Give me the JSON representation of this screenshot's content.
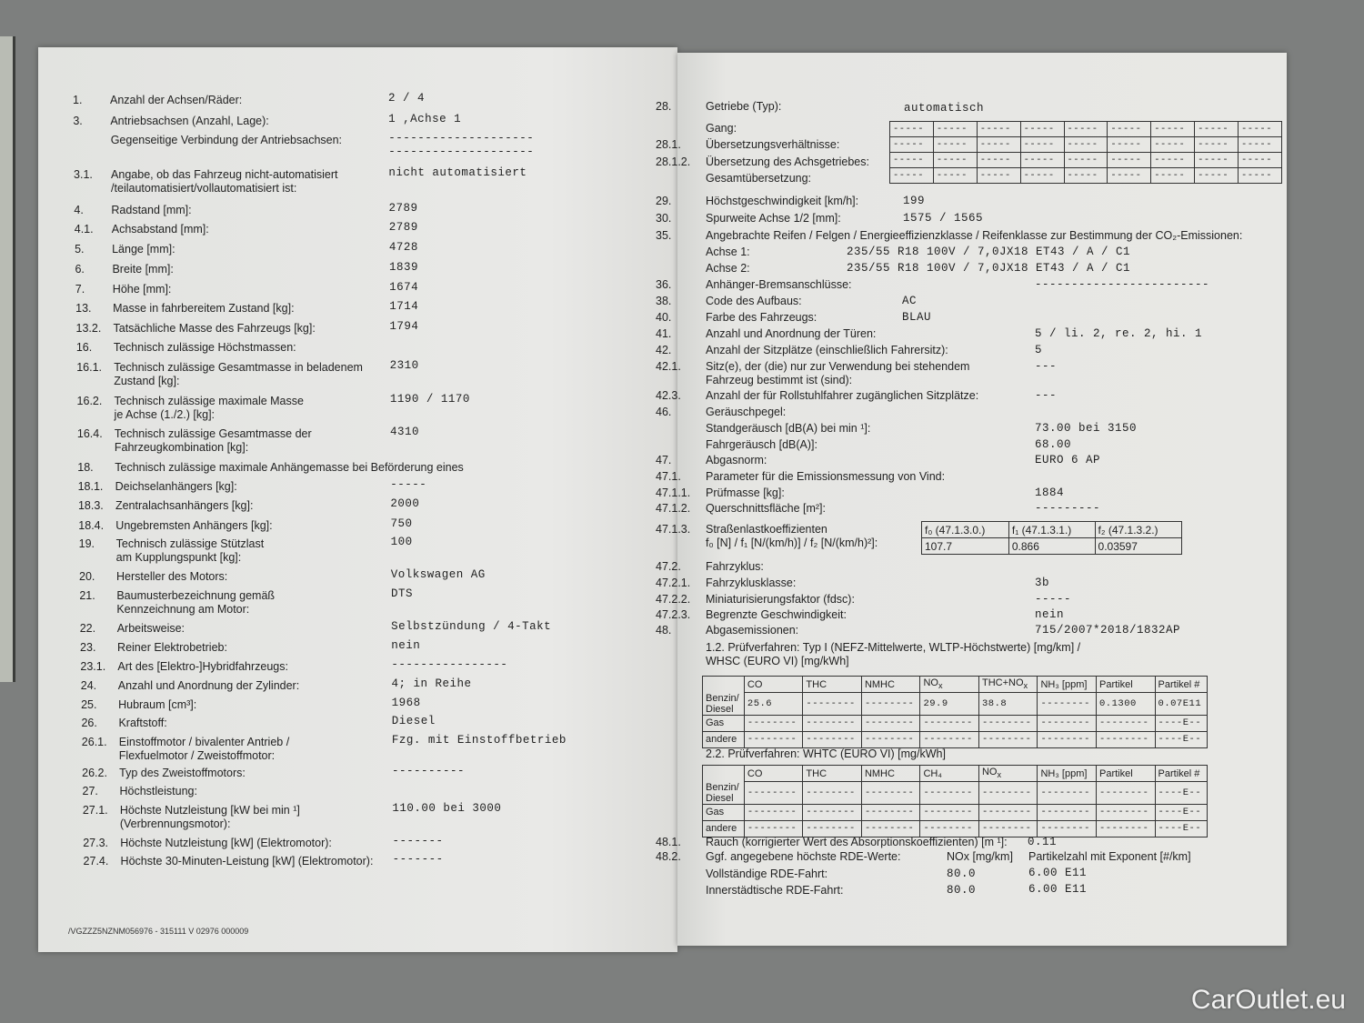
{
  "left_page": {
    "items": [
      {
        "num": "1.",
        "label": "Anzahl der Achsen/Räder:",
        "value": "2  / 4"
      },
      {
        "num": "3.",
        "label": "Antriebsachsen (Anzahl, Lage):",
        "value": "1 ,Achse 1"
      },
      {
        "num": "",
        "label": "Gegenseitige Verbindung der Antriebsachsen:",
        "value": "--------------------\n--------------------"
      },
      {
        "num": "3.1.",
        "label": "Angabe, ob das Fahrzeug nicht-automatisiert\n/teilautomatisiert/vollautomatisiert ist:",
        "value": "nicht automatisiert"
      },
      {
        "num": "4.",
        "label": "Radstand [mm]:",
        "value": "2789"
      },
      {
        "num": "4.1.",
        "label": "Achsabstand [mm]:",
        "value": "2789"
      },
      {
        "num": "5.",
        "label": "Länge [mm]:",
        "value": "4728"
      },
      {
        "num": "6.",
        "label": "Breite [mm]:",
        "value": "1839"
      },
      {
        "num": "7.",
        "label": "Höhe [mm]:",
        "value": "1674"
      },
      {
        "num": "13.",
        "label": "Masse in fahrbereitem Zustand [kg]:",
        "value": "1714"
      },
      {
        "num": "13.2.",
        "label": "Tatsächliche Masse des Fahrzeugs [kg]:",
        "value": "1794"
      },
      {
        "num": "16.",
        "label": "Technisch zulässige Höchstmassen:",
        "value": ""
      },
      {
        "num": "16.1.",
        "label": "Technisch zulässige Gesamtmasse in beladenem\nZustand [kg]:",
        "value": "2310"
      },
      {
        "num": "16.2.",
        "label": "Technisch zulässige maximale Masse\nje Achse (1./2.) [kg]:",
        "value": "1190  / 1170"
      },
      {
        "num": "16.4.",
        "label": "Technisch zulässige Gesamtmasse der\nFahrzeugkombination [kg]:",
        "value": "4310"
      },
      {
        "num": "18.",
        "label": "Technisch zulässige maximale Anhängemasse bei Beförderung eines",
        "value": ""
      },
      {
        "num": "18.1.",
        "label": "Deichselanhängers [kg]:",
        "value": "-----"
      },
      {
        "num": "18.3.",
        "label": "Zentralachsanhängers [kg]:",
        "value": "2000"
      },
      {
        "num": "18.4.",
        "label": "Ungebremsten Anhängers [kg]:",
        "value": "750"
      },
      {
        "num": "19.",
        "label": "Technisch zulässige Stützlast\nam Kupplungspunkt [kg]:",
        "value": "100"
      },
      {
        "num": "20.",
        "label": "Hersteller des Motors:",
        "value": "Volkswagen AG"
      },
      {
        "num": "21.",
        "label": "Baumusterbezeichnung gemäß\nKennzeichnung am Motor:",
        "value": "DTS"
      },
      {
        "num": "22.",
        "label": "Arbeitsweise:",
        "value": "Selbstzündung / 4-Takt"
      },
      {
        "num": "23.",
        "label": "Reiner Elektrobetrieb:",
        "value": "nein"
      },
      {
        "num": "23.1.",
        "label": "Art des [Elektro-]Hybridfahrzeugs:",
        "value": "----------------"
      },
      {
        "num": "24.",
        "label": "Anzahl und Anordnung der Zylinder:",
        "value": "4; in Reihe"
      },
      {
        "num": "25.",
        "label": "Hubraum [cm³]:",
        "value": "1968"
      },
      {
        "num": "26.",
        "label": "Kraftstoff:",
        "value": "Diesel"
      },
      {
        "num": "26.1.",
        "label": "Einstoffmotor / bivalenter Antrieb /\nFlexfuelmotor / Zweistoffmotor:",
        "value": "Fzg. mit Einstoffbetrieb"
      },
      {
        "num": "26.2.",
        "label": "Typ des Zweistoffmotors:",
        "value": "----------"
      },
      {
        "num": "27.",
        "label": "Höchstleistung:",
        "value": ""
      },
      {
        "num": "27.1.",
        "label": "Höchste Nutzleistung [kW bei min ¹]\n(Verbrennungsmotor):",
        "value": "110.00  bei 3000"
      },
      {
        "num": "27.3.",
        "label": "Höchste Nutzleistung [kW] (Elektromotor):",
        "value": "-------"
      },
      {
        "num": "27.4.",
        "label": "Höchste 30-Minuten-Leistung [kW] (Elektromotor):",
        "value": "-------"
      }
    ],
    "footer": "/VGZZZ5NZNM056976 - 315111 V 02976    000009"
  },
  "right_page": {
    "items": [
      {
        "num": "28.",
        "label": "Getriebe (Typ):",
        "value": "automatisch"
      },
      {
        "num": "",
        "label": "Gang:",
        "value": ""
      },
      {
        "num": "28.1.",
        "label": "Übersetzungsverhältnisse:",
        "value": ""
      },
      {
        "num": "28.1.2.",
        "label": "Übersetzung des Achsgetriebes:",
        "value": ""
      },
      {
        "num": "",
        "label": "Gesamtübersetzung:",
        "value": ""
      },
      {
        "num": "29.",
        "label": "Höchstgeschwindigkeit [km/h]:",
        "value": "199"
      },
      {
        "num": "30.",
        "label": "Spurweite Achse 1/2 [mm]:",
        "value": "1575  / 1565"
      },
      {
        "num": "35.",
        "label": "Angebrachte Reifen / Felgen / Energieeffizienzklasse / Reifenklasse zur Bestimmung der CO₂-Emissionen:",
        "value": ""
      },
      {
        "num": "",
        "label": "Achse 1:",
        "value": "235/55 R18 100V        / 7,0JX18 ET43        / A   / C1"
      },
      {
        "num": "",
        "label": "Achse 2:",
        "value": "235/55 R18 100V        / 7,0JX18 ET43        / A   / C1"
      },
      {
        "num": "36.",
        "label": "Anhänger-Bremsanschlüsse:",
        "value": "------------------------"
      },
      {
        "num": "38.",
        "label": "Code des Aufbaus:",
        "value": "AC"
      },
      {
        "num": "40.",
        "label": "Farbe des Fahrzeugs:",
        "value": "BLAU"
      },
      {
        "num": "41.",
        "label": "Anzahl und Anordnung der Türen:",
        "value": "5  / li. 2, re. 2, hi. 1"
      },
      {
        "num": "42.",
        "label": "Anzahl der Sitzplätze (einschließlich Fahrersitz):",
        "value": "5"
      },
      {
        "num": "42.1.",
        "label": "Sitz(e), der (die) nur zur Verwendung bei stehendem\nFahrzeug bestimmt ist (sind):",
        "value": "---"
      },
      {
        "num": "42.3.",
        "label": "Anzahl der für Rollstuhlfahrer zugänglichen Sitzplätze:",
        "value": "---"
      },
      {
        "num": "46.",
        "label": "Geräuschpegel:",
        "value": ""
      },
      {
        "num": "",
        "label": "Standgeräusch [dB(A) bei min ¹]:",
        "value": "73.00  bei 3150"
      },
      {
        "num": "",
        "label": "Fahrgeräusch [dB(A)]:",
        "value": "68.00"
      },
      {
        "num": "47.",
        "label": "Abgasnorm:",
        "value": "EURO 6 AP"
      },
      {
        "num": "47.1.",
        "label": "Parameter für die Emissionsmessung von Vind:",
        "value": ""
      },
      {
        "num": "47.1.1.",
        "label": "Prüfmasse [kg]:",
        "value": "1884"
      },
      {
        "num": "47.1.2.",
        "label": "Querschnittsfläche [m²]:",
        "value": "---------"
      },
      {
        "num": "47.1.3.",
        "label": "Straßenlastkoeffizienten\nf₀ [N] / f₁ [N/(km/h)] / f₂ [N/(km/h)²]:",
        "value": ""
      },
      {
        "num": "47.2.",
        "label": "Fahrzyklus:",
        "value": ""
      },
      {
        "num": "47.2.1.",
        "label": "Fahrzyklusklasse:",
        "value": "3b"
      },
      {
        "num": "47.2.2.",
        "label": "Miniaturisierungsfaktor (fdsc):",
        "value": "-----"
      },
      {
        "num": "47.2.3.",
        "label": "Begrenzte Geschwindigkeit:",
        "value": "nein"
      },
      {
        "num": "48.",
        "label": "Abgasemissionen:",
        "value": "715/2007*2018/1832AP"
      },
      {
        "num": "",
        "label": "1.2. Prüfverfahren: Typ I (NEFZ-Mittelwerte, WLTP-Höchstwerte) [mg/km] /\n                                WHSC (EURO VI) [mg/kWh]",
        "value": ""
      },
      {
        "num": "",
        "label": "2.2. Prüfverfahren: WHTC (EURO VI) [mg/kWh]",
        "value": ""
      },
      {
        "num": "48.1.",
        "label": "Rauch (korrigierter Wert des Absorptionskoeffizienten) [m ¹]:",
        "value": "0.11"
      },
      {
        "num": "48.2.",
        "label": "Ggf. angegebene höchste RDE-Werte:",
        "value": ""
      },
      {
        "num": "",
        "label": "Vollständige RDE-Fahrt:",
        "value": ""
      },
      {
        "num": "",
        "label": "Innerstädtische RDE-Fahrt:",
        "value": ""
      }
    ],
    "gear_cell": "-----",
    "road_load": {
      "headers": [
        "f₀ (47.1.3.0.)",
        "f₁ (47.1.3.1.)",
        "f₂ (47.1.3.2.)"
      ],
      "values": [
        "107.7",
        "0.866",
        "0.03597"
      ]
    },
    "emissions_typ1": {
      "headers": [
        "",
        "CO",
        "THC",
        "NMHC",
        "NOx",
        "THC+NOx",
        "NH₃ [ppm]",
        "Partikel",
        "Partikel #"
      ],
      "rows": [
        [
          "Benzin/\nDiesel",
          "25.6",
          "--------",
          "--------",
          "29.9",
          "38.8",
          "--------",
          "0.1300",
          "0.07E11"
        ],
        [
          "Gas",
          "--------",
          "--------",
          "--------",
          "--------",
          "--------",
          "--------",
          "--------",
          "----E--"
        ],
        [
          "andere",
          "--------",
          "--------",
          "--------",
          "--------",
          "--------",
          "--------",
          "--------",
          "----E--"
        ]
      ]
    },
    "emissions_whtc": {
      "headers": [
        "",
        "CO",
        "THC",
        "NMHC",
        "CH₄",
        "NOx",
        "NH₃ [ppm]",
        "Partikel",
        "Partikel #"
      ],
      "rows": [
        [
          "Benzin/\nDiesel",
          "--------",
          "--------",
          "--------",
          "--------",
          "--------",
          "--------",
          "--------",
          "----E--"
        ],
        [
          "Gas",
          "--------",
          "--------",
          "--------",
          "--------",
          "--------",
          "--------",
          "--------",
          "----E--"
        ],
        [
          "andere",
          "--------",
          "--------",
          "--------",
          "--------",
          "--------",
          "--------",
          "--------",
          "----E--"
        ]
      ]
    },
    "rde": {
      "headers": [
        "NOx [mg/km]",
        "Partikelzahl mit Exponent [#/km]"
      ],
      "full": [
        "80.0",
        "6.00 E11"
      ],
      "urban": [
        "80.0",
        "6.00 E11"
      ]
    }
  },
  "watermark": "CarOutlet.eu"
}
